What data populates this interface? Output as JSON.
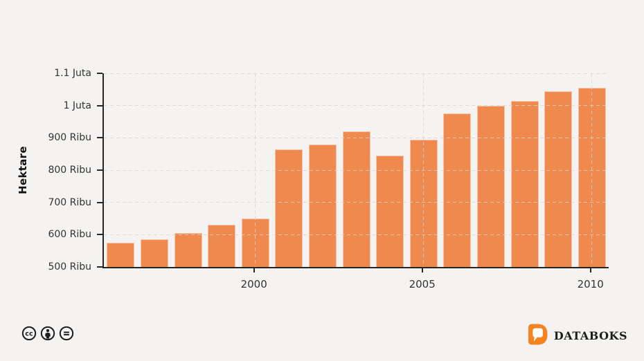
{
  "chart_data": {
    "type": "bar",
    "title": "",
    "ylabel": "Hektare",
    "unit": "Ribu Hektare",
    "x": [
      1996,
      1997,
      1998,
      1999,
      2000,
      2001,
      2002,
      2003,
      2004,
      2005,
      2006,
      2007,
      2008,
      2009,
      2010
    ],
    "values_ribu": [
      575,
      585,
      605,
      630,
      650,
      865,
      880,
      920,
      845,
      895,
      975,
      1000,
      1015,
      1045,
      1055
    ],
    "ylim_ribu": [
      500,
      1100
    ],
    "yticks": [
      {
        "value": 500,
        "label": "500 Ribu"
      },
      {
        "value": 600,
        "label": "600 Ribu"
      },
      {
        "value": 700,
        "label": "700 Ribu"
      },
      {
        "value": 800,
        "label": "800 Ribu"
      },
      {
        "value": 900,
        "label": "900 Ribu"
      },
      {
        "value": 1000,
        "label": "1 Juta"
      },
      {
        "value": 1100,
        "label": "1.1 Juta"
      }
    ],
    "xticks": [
      {
        "year": 2000,
        "label": "2000"
      },
      {
        "year": 2005,
        "label": "2005"
      },
      {
        "year": 2010,
        "label": "2010"
      }
    ],
    "grid": true,
    "legend": "none",
    "colors": {
      "bar": "#F0894E",
      "axis": "#262626",
      "gridline": "#D6D4D0",
      "background": "#F4F3F1",
      "tick_text": "#333333"
    }
  },
  "footer": {
    "license_icons": [
      {
        "name": "cc-icon"
      },
      {
        "name": "attribution-icon"
      },
      {
        "name": "no-derivatives-icon"
      }
    ],
    "brand_text": "DATABOKS",
    "brand_color": "#F5831F"
  }
}
